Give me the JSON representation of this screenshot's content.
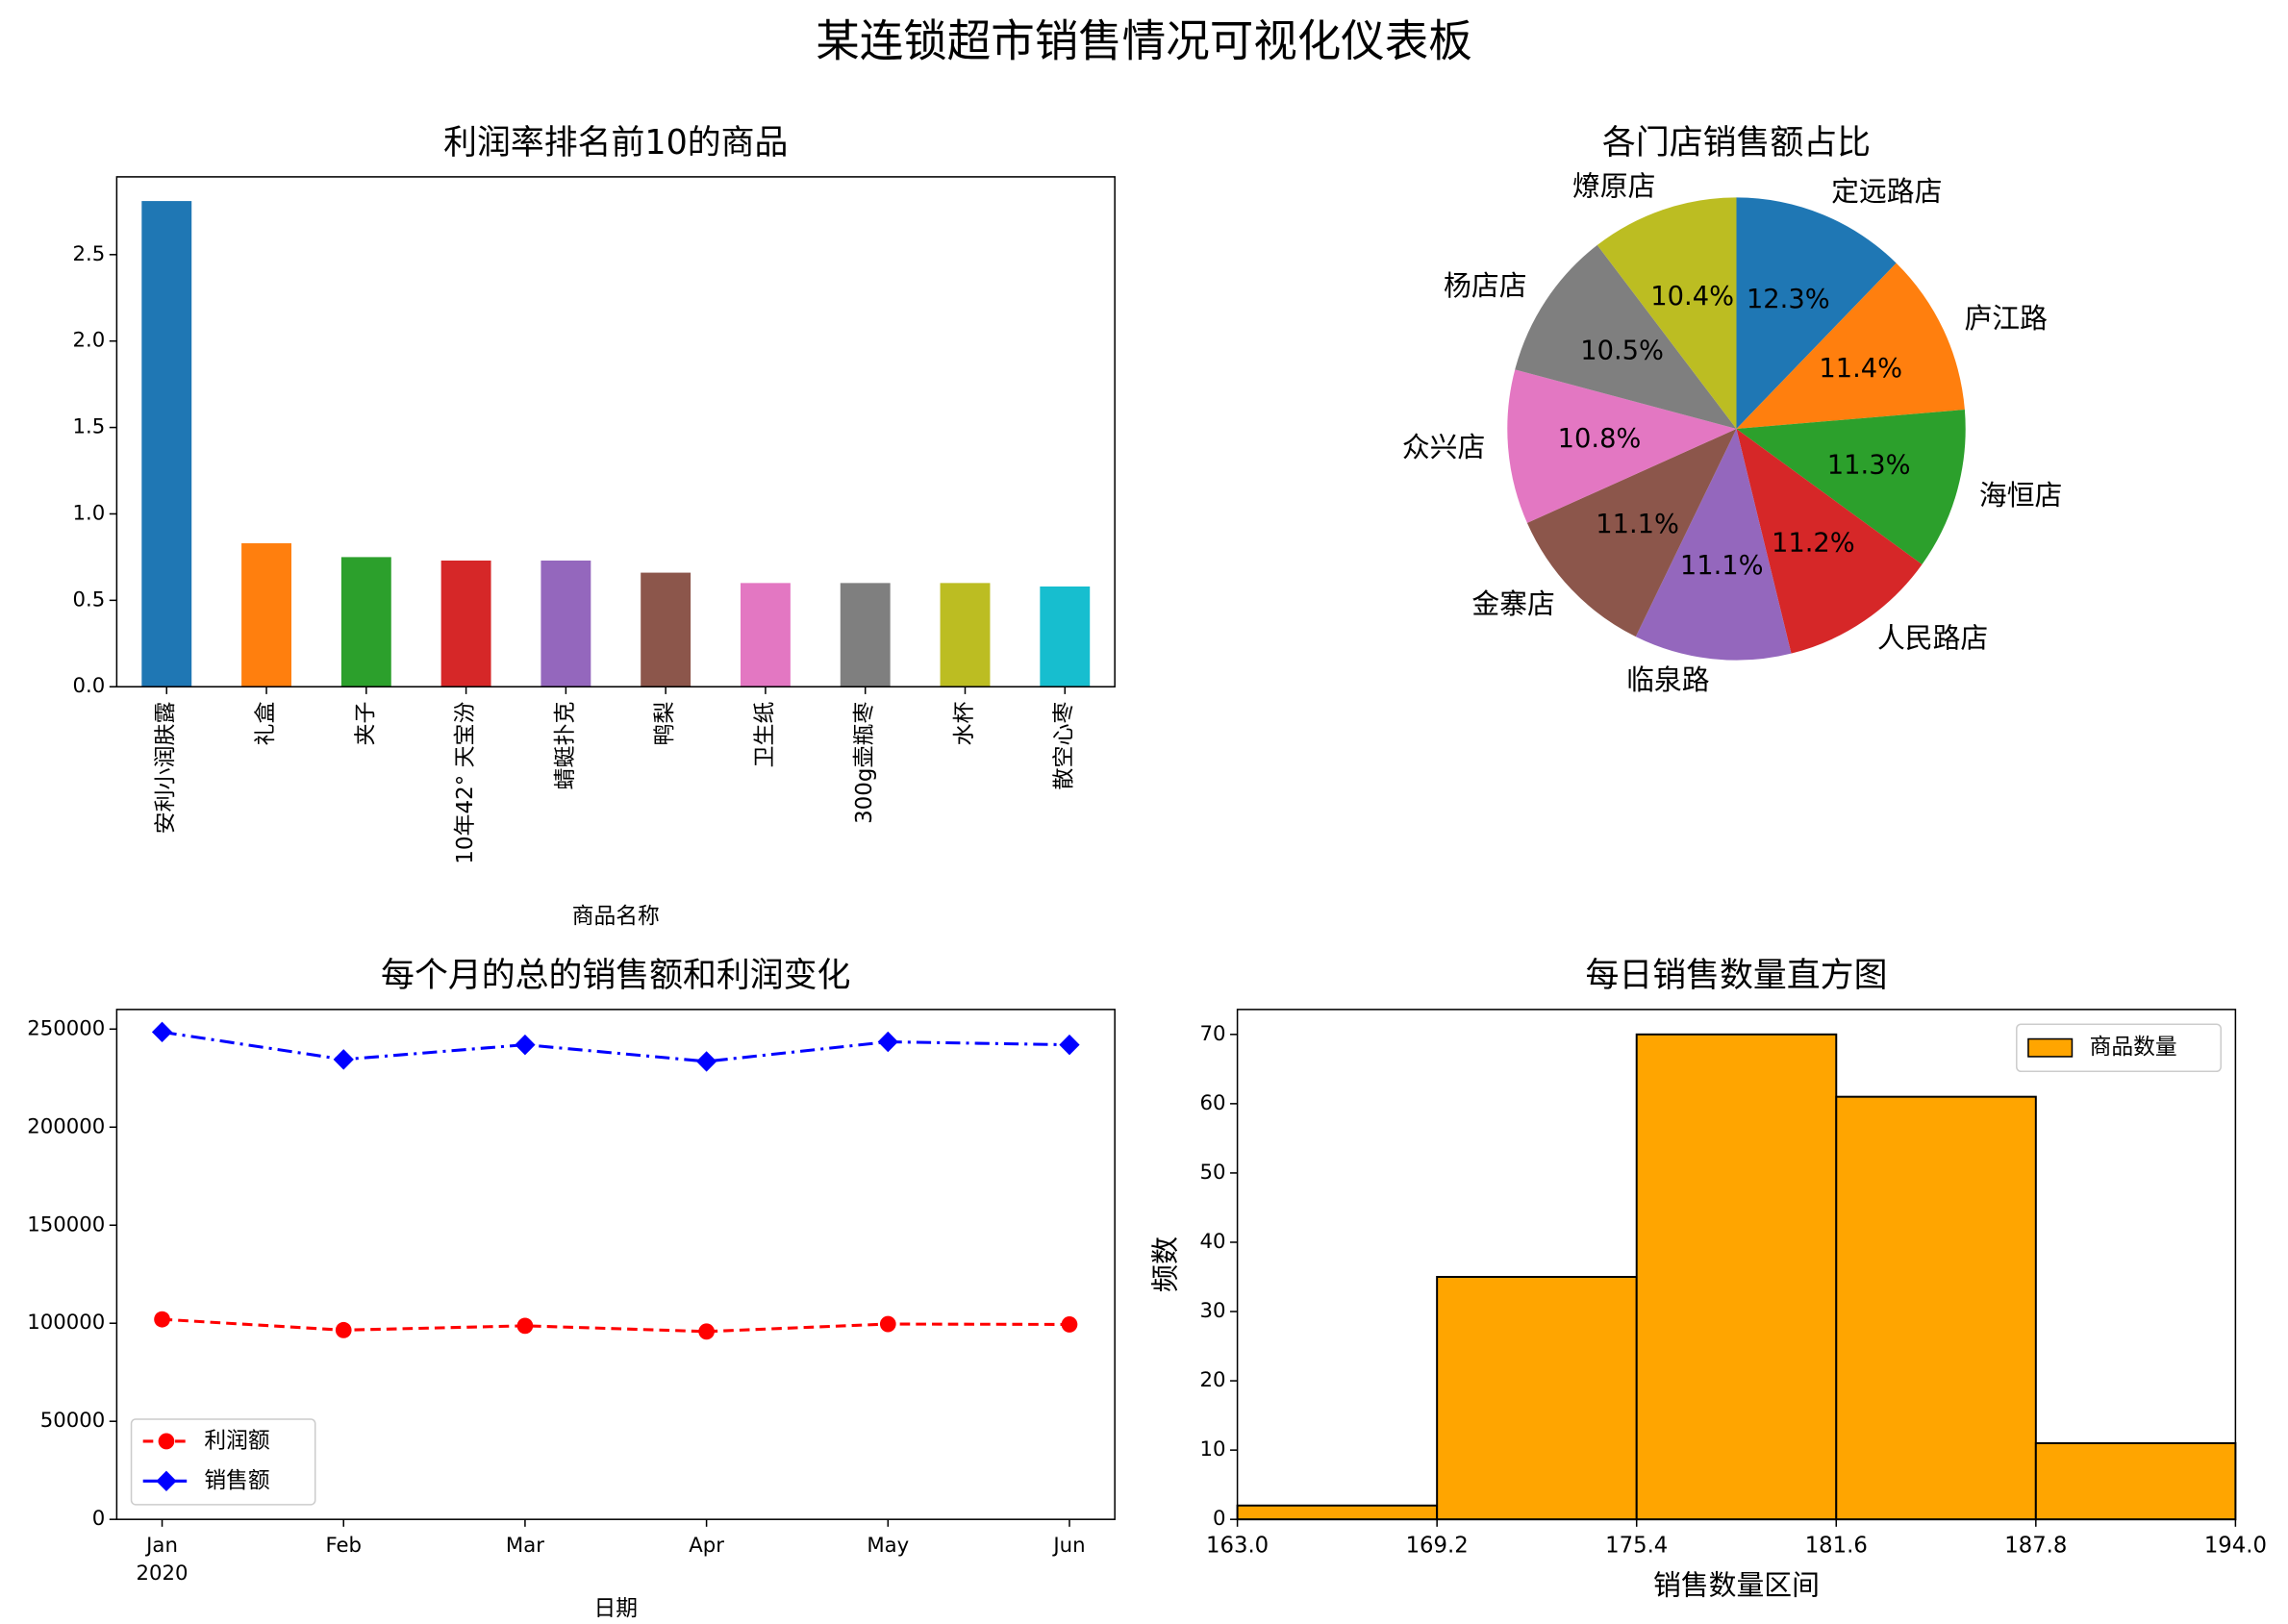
{
  "title": "某连锁超市销售情况可视化仪表板",
  "chart_data": [
    {
      "type": "bar",
      "title": "利润率排名前10的商品",
      "xlabel": "商品名称",
      "categories": [
        "安利小润肤露",
        "礼盒",
        "夹子",
        "10年42° 天宝汾",
        "蜻蜓扑克",
        "鸭梨",
        "卫生纸",
        "300g壶瓶枣",
        "水杯",
        "散空心枣"
      ],
      "values": [
        2.81,
        0.83,
        0.75,
        0.73,
        0.73,
        0.66,
        0.6,
        0.6,
        0.6,
        0.58
      ],
      "colors": [
        "#1f77b4",
        "#ff7f0e",
        "#2ca02c",
        "#d62728",
        "#9467bd",
        "#8c564b",
        "#e377c2",
        "#7f7f7f",
        "#bcbd22",
        "#17becf"
      ],
      "ylim": [
        0,
        2.95
      ],
      "yticks": [
        {
          "value": 0,
          "label": "0.0"
        },
        {
          "value": 0.5,
          "label": "0.5"
        },
        {
          "value": 1,
          "label": "1.0"
        },
        {
          "value": 1.5,
          "label": "1.5"
        },
        {
          "value": 2,
          "label": "2.0"
        },
        {
          "value": 2.5,
          "label": "2.5"
        }
      ]
    },
    {
      "type": "pie",
      "title": "各门店销售额占比",
      "categories": [
        "定远路店",
        "庐江路",
        "海恒店",
        "人民路店",
        "临泉路",
        "金寨店",
        "众兴店",
        "杨店店",
        "燎原店"
      ],
      "values": [
        12.3,
        11.4,
        11.3,
        11.2,
        11.1,
        11.1,
        10.8,
        10.5,
        10.4
      ],
      "value_labels": [
        "12.3%",
        "11.4%",
        "11.3%",
        "11.2%",
        "11.1%",
        "11.1%",
        "10.8%",
        "10.5%",
        "10.4%"
      ],
      "colors": [
        "#1f77b4",
        "#ff7f0e",
        "#2ca02c",
        "#d62728",
        "#9467bd",
        "#8c564b",
        "#e377c2",
        "#7f7f7f",
        "#bcbd22"
      ]
    },
    {
      "type": "line",
      "title": "每个月的总的销售额和利润变化",
      "xlabel": "日期",
      "categories": [
        "Jan",
        "Feb",
        "Mar",
        "Apr",
        "May",
        "Jun"
      ],
      "year_label": "2020",
      "series": [
        {
          "name": "利润额",
          "color": "#ff0000",
          "linestyle": "dashed",
          "marker": "circle",
          "values": [
            102000,
            96500,
            98700,
            95800,
            99600,
            99400
          ]
        },
        {
          "name": "销售额",
          "color": "#0000ff",
          "linestyle": "dashdot",
          "marker": "diamond",
          "values": [
            248500,
            234500,
            242000,
            233500,
            243500,
            242000
          ]
        }
      ],
      "ylim": [
        0,
        260000
      ],
      "yticks": [
        0,
        50000,
        100000,
        150000,
        200000,
        250000
      ],
      "legend": "lower left"
    },
    {
      "type": "histogram",
      "title": "每日销售数量直方图",
      "xlabel": "销售数量区间",
      "ylabel": "频数",
      "bins": [
        163.0,
        169.2,
        175.4,
        181.6,
        187.8,
        194.0
      ],
      "values": [
        2,
        35,
        70,
        61,
        11
      ],
      "series_name": "商品数量",
      "color": "#ffa500",
      "edgecolor": "#000000",
      "xlim": [
        163,
        194
      ],
      "xticks": [
        {
          "value": 163,
          "label": "163.0"
        },
        {
          "value": 169.2,
          "label": "169.2"
        },
        {
          "value": 175.4,
          "label": "175.4"
        },
        {
          "value": 181.6,
          "label": "181.6"
        },
        {
          "value": 187.8,
          "label": "187.8"
        },
        {
          "value": 194,
          "label": "194.0"
        }
      ],
      "ylim": [
        0,
        73.6
      ],
      "yticks": [
        0,
        10,
        20,
        30,
        40,
        50,
        60,
        70
      ],
      "legend": "upper right"
    }
  ]
}
